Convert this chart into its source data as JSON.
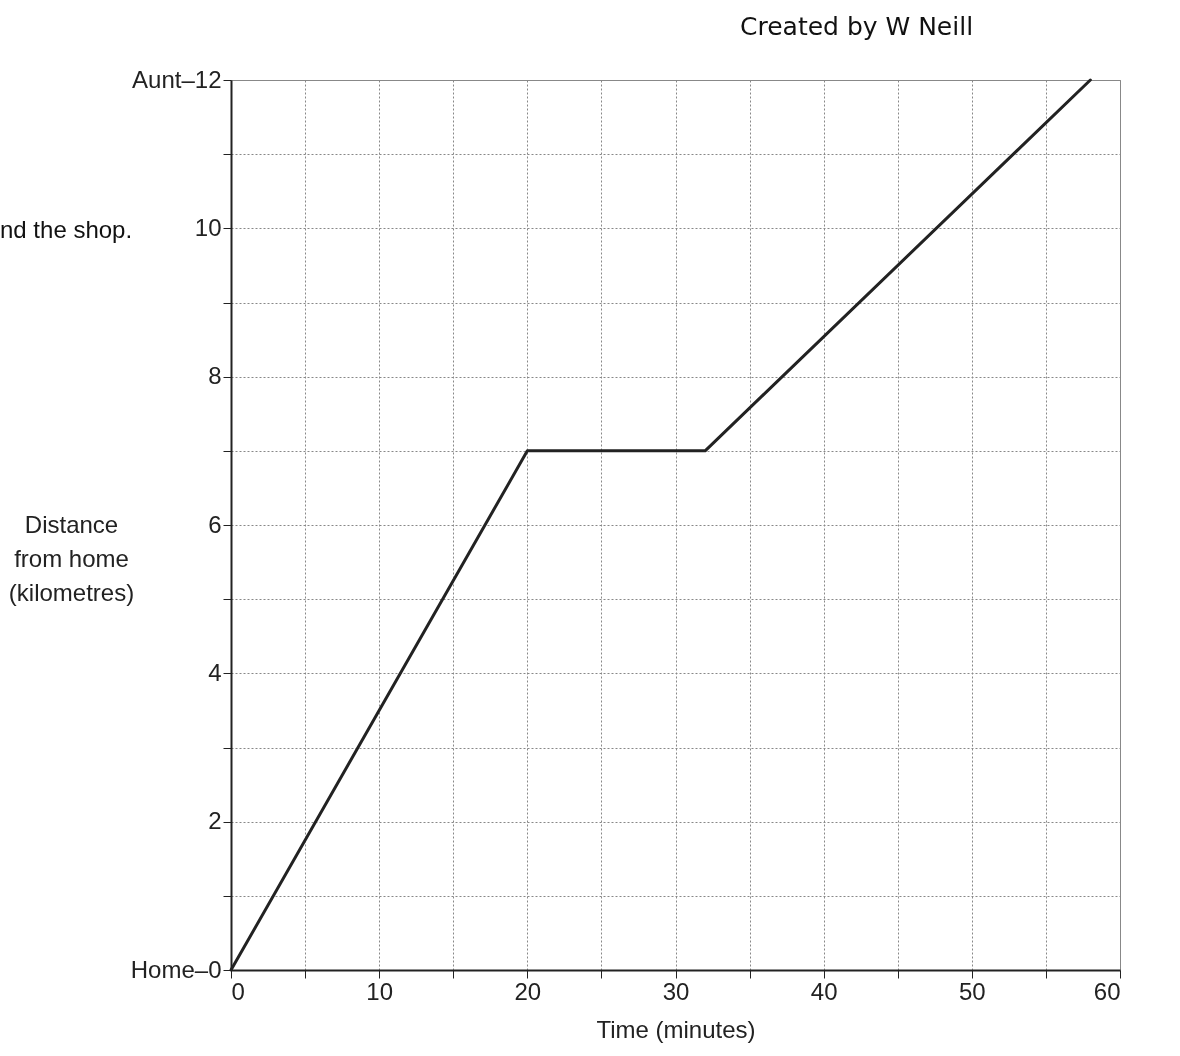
{
  "chart_data": {
    "type": "line",
    "xlabel": "Time (minutes)",
    "ylabel": "Distance\nfrom home\n(kilometres)",
    "annotations": [
      "Created by W Neill",
      "nd the shop."
    ],
    "x": [
      0,
      20,
      32,
      58
    ],
    "series": [
      {
        "color": "#222222",
        "values": [
          0,
          7,
          7,
          12
        ]
      }
    ],
    "xlim": [
      0,
      60
    ],
    "ylim": [
      0,
      12
    ],
    "xticks": [
      0,
      {
        "value": 5,
        "label": null
      },
      10,
      {
        "value": 15,
        "label": null
      },
      20,
      {
        "value": 25,
        "label": null
      },
      30,
      {
        "value": 35,
        "label": null
      },
      40,
      {
        "value": 45,
        "label": null
      },
      50,
      {
        "value": 55,
        "label": null
      },
      60
    ],
    "yticks": [
      {
        "value": 0,
        "label": "Home–0"
      },
      {
        "value": 1,
        "label": null
      },
      2,
      {
        "value": 3,
        "label": null
      },
      4,
      {
        "value": 5,
        "label": null
      },
      6,
      {
        "value": 7,
        "label": null
      },
      8,
      {
        "value": 9,
        "label": null
      },
      10,
      {
        "value": 11,
        "label": null
      },
      {
        "value": 12,
        "label": "Aunt–12"
      }
    ],
    "grid": true,
    "marker": "none",
    "line_style": "solid"
  }
}
